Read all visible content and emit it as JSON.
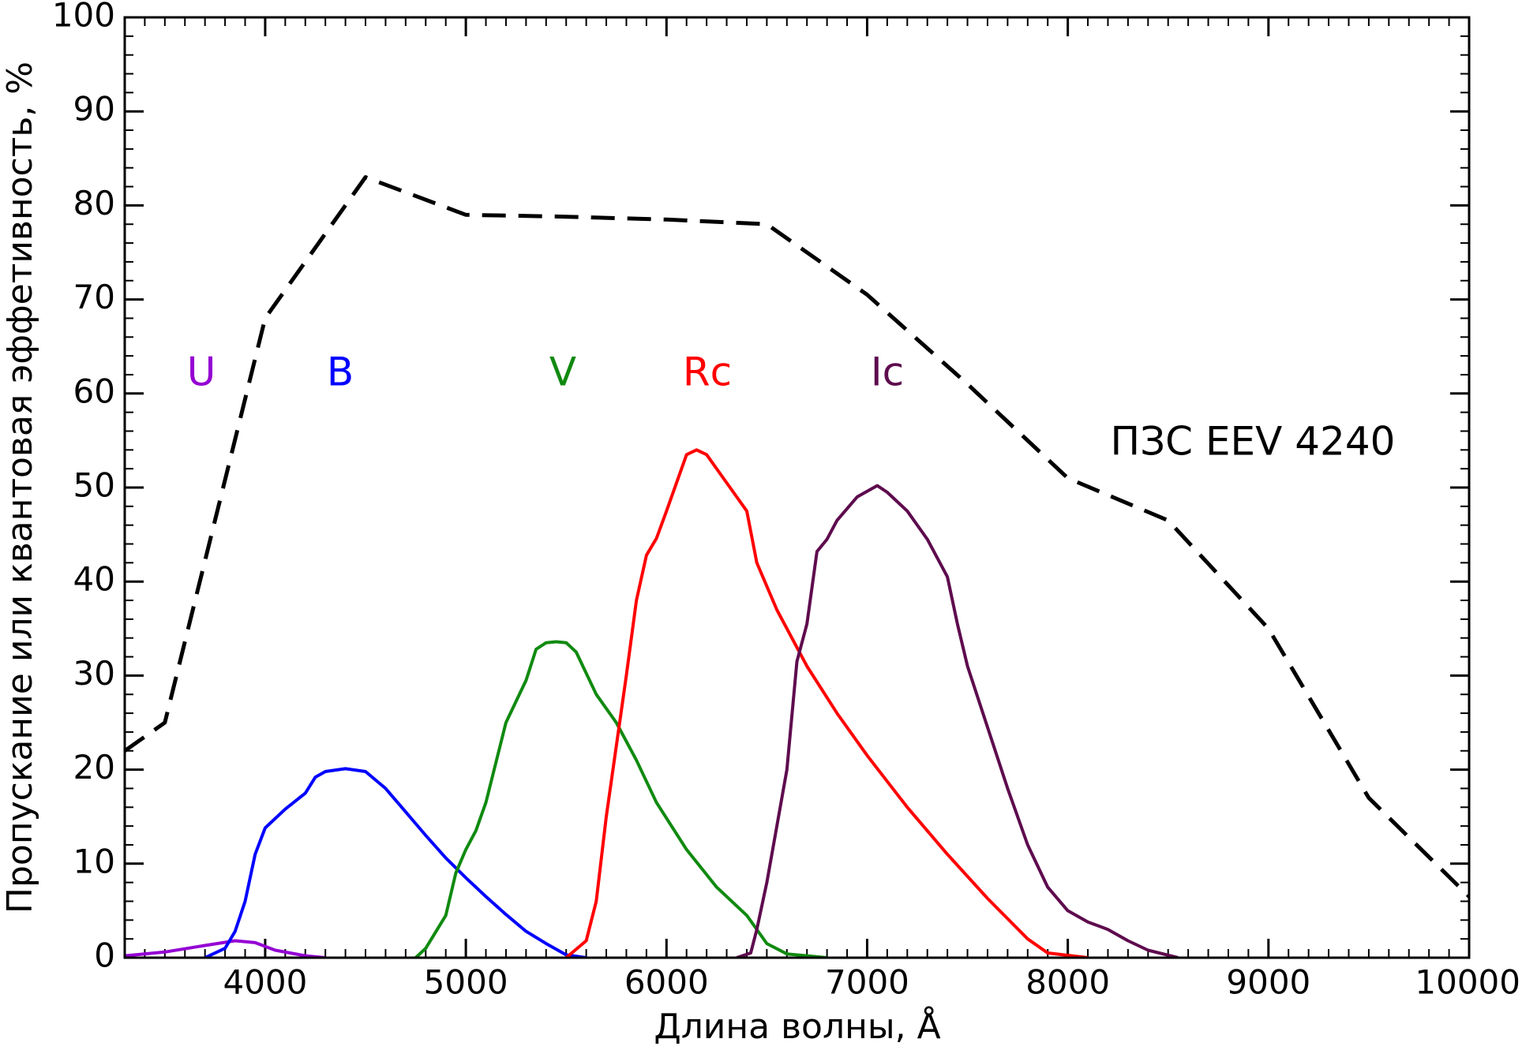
{
  "chart_data": {
    "type": "line",
    "x_label": "Длина волны, Å",
    "y_label": "Пропускание или квантовая эффетивность, %",
    "xlim": [
      3300,
      10000
    ],
    "xticks": [
      4000,
      5000,
      6000,
      7000,
      8000,
      9000,
      10000
    ],
    "ylim": [
      0,
      100
    ],
    "yticks": [
      0,
      10,
      20,
      30,
      40,
      50,
      60,
      70,
      80,
      90,
      100
    ],
    "grid": false,
    "series": [
      {
        "name": "U",
        "color": "#9400d3",
        "dashed": false,
        "x": [
          3300,
          3500,
          3700,
          3850,
          3950,
          4050,
          4200,
          4300
        ],
        "values": [
          0.2,
          0.6,
          1.3,
          1.8,
          1.6,
          0.8,
          0.2,
          0
        ]
      },
      {
        "name": "B",
        "color": "#0000ff",
        "dashed": false,
        "x": [
          3700,
          3800,
          3850,
          3900,
          3950,
          4000,
          4100,
          4200,
          4250,
          4300,
          4400,
          4500,
          4600,
          4700,
          4800,
          4900,
          5000,
          5100,
          5200,
          5300,
          5400,
          5500,
          5600
        ],
        "values": [
          0,
          1,
          2.8,
          6,
          11,
          13.8,
          15.8,
          17.5,
          19.2,
          19.8,
          20.1,
          19.8,
          18,
          15.5,
          13,
          10.6,
          8.5,
          6.5,
          4.6,
          2.8,
          1.5,
          0.3,
          0
        ]
      },
      {
        "name": "V",
        "color": "#108a10",
        "dashed": false,
        "x": [
          4750,
          4800,
          4900,
          4950,
          5000,
          5050,
          5100,
          5200,
          5300,
          5350,
          5400,
          5450,
          5500,
          5550,
          5650,
          5750,
          5850,
          5950,
          6100,
          6250,
          6400,
          6500,
          6600,
          6800
        ],
        "values": [
          0,
          1,
          4.5,
          9,
          11.5,
          13.5,
          16.5,
          25,
          29.5,
          32.8,
          33.5,
          33.6,
          33.5,
          32.5,
          28,
          25,
          21,
          16.5,
          11.5,
          7.5,
          4.5,
          1.5,
          0.4,
          0
        ]
      },
      {
        "name": "Rc",
        "color": "#ff0000",
        "dashed": false,
        "x": [
          5500,
          5600,
          5650,
          5700,
          5800,
          5850,
          5900,
          5950,
          6000,
          6100,
          6150,
          6200,
          6300,
          6400,
          6450,
          6550,
          6700,
          6850,
          7000,
          7200,
          7400,
          7600,
          7800,
          7900,
          8100
        ],
        "values": [
          0,
          1.8,
          6,
          15,
          30,
          38,
          42.8,
          44.6,
          47.5,
          53.5,
          54,
          53.5,
          50.5,
          47.5,
          42,
          37,
          31,
          26,
          21.5,
          16,
          11,
          6.3,
          2,
          0.5,
          0
        ]
      },
      {
        "name": "Ic",
        "color": "#5e0b4e",
        "dashed": false,
        "x": [
          6350,
          6420,
          6450,
          6500,
          6600,
          6650,
          6700,
          6750,
          6800,
          6850,
          6950,
          7050,
          7100,
          7200,
          7300,
          7400,
          7450,
          7500,
          7600,
          7700,
          7800,
          7900,
          8000,
          8100,
          8200,
          8300,
          8400,
          8550
        ],
        "values": [
          0,
          0.5,
          3,
          8,
          20,
          31.5,
          35.5,
          43.2,
          44.5,
          46.5,
          49,
          50.2,
          49.5,
          47.5,
          44.5,
          40.5,
          35.5,
          31,
          24.5,
          18,
          12,
          7.5,
          5,
          3.8,
          3,
          1.8,
          0.8,
          0
        ]
      },
      {
        "name": "ПЗС EEV 4240",
        "color": "#000000",
        "dashed": true,
        "x": [
          3300,
          3500,
          4000,
          4500,
          5000,
          5500,
          6000,
          6500,
          7000,
          7500,
          8000,
          8500,
          9000,
          9500,
          10000
        ],
        "values": [
          22,
          25,
          68,
          83,
          79,
          78.8,
          78.5,
          78,
          70.5,
          61,
          51,
          46.5,
          35,
          17,
          6.5
        ]
      }
    ]
  }
}
